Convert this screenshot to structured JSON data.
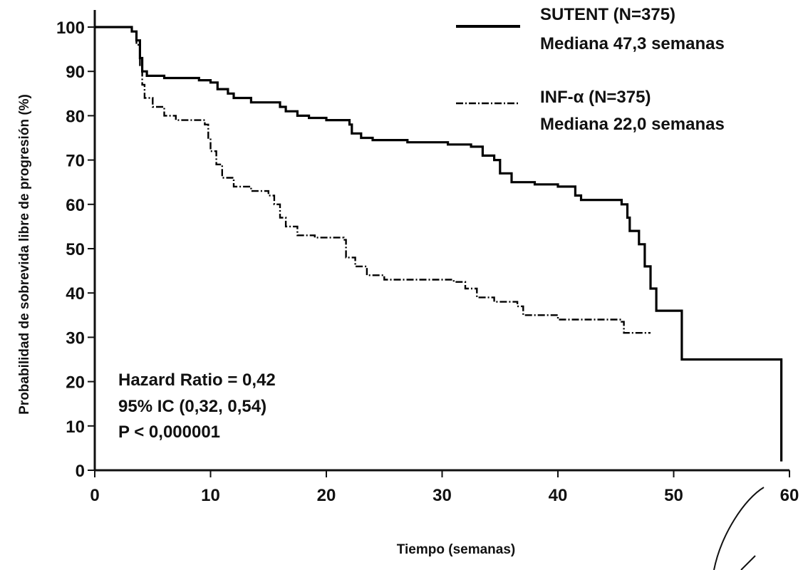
{
  "chart_data": {
    "type": "line",
    "title": "",
    "xlabel": "Tiempo (semanas)",
    "ylabel": "Probabilidad de sobrevida libre de progresión (%)",
    "xlim": [
      0,
      60
    ],
    "ylim": [
      0,
      100
    ],
    "x_ticks": [
      "0",
      "10",
      "20",
      "30",
      "40",
      "50",
      "60"
    ],
    "y_ticks": [
      "0",
      "10",
      "20",
      "30",
      "40",
      "50",
      "60",
      "70",
      "80",
      "90",
      "100"
    ],
    "grid": false,
    "legend_position": "top-right",
    "series": [
      {
        "name": "SUTENT (N=375)",
        "median_label": "Mediana 47,3 semanas",
        "color": "#000000",
        "style": "solid",
        "points": [
          [
            0,
            100
          ],
          [
            3.2,
            99
          ],
          [
            3.6,
            97
          ],
          [
            3.9,
            93
          ],
          [
            4.1,
            90
          ],
          [
            4.5,
            89
          ],
          [
            6,
            88.5
          ],
          [
            9,
            88
          ],
          [
            10,
            87.5
          ],
          [
            10.6,
            86
          ],
          [
            11.5,
            85
          ],
          [
            12,
            84
          ],
          [
            13.5,
            83
          ],
          [
            16,
            82
          ],
          [
            16.5,
            81
          ],
          [
            17.5,
            80
          ],
          [
            18.5,
            79.5
          ],
          [
            20,
            79
          ],
          [
            22,
            78
          ],
          [
            22.2,
            76
          ],
          [
            23,
            75
          ],
          [
            24,
            74.5
          ],
          [
            27,
            74
          ],
          [
            30.5,
            73.5
          ],
          [
            32.5,
            73
          ],
          [
            33.5,
            71
          ],
          [
            34.5,
            70
          ],
          [
            35,
            67
          ],
          [
            36,
            65
          ],
          [
            38,
            64.5
          ],
          [
            40,
            64
          ],
          [
            41.5,
            62
          ],
          [
            42,
            61
          ],
          [
            45.5,
            60
          ],
          [
            46,
            57
          ],
          [
            46.2,
            54
          ],
          [
            47,
            51
          ],
          [
            47.5,
            46
          ],
          [
            48,
            41
          ],
          [
            48.5,
            36
          ],
          [
            50,
            36
          ],
          [
            50.7,
            25
          ],
          [
            59.3,
            25
          ],
          [
            59.3,
            2
          ]
        ]
      },
      {
        "name": "INF-α (N=375)",
        "median_label": "Mediana 22,0 semanas",
        "color": "#000000",
        "style": "dashed",
        "points": [
          [
            0,
            100
          ],
          [
            3.2,
            99
          ],
          [
            3.6,
            96
          ],
          [
            3.9,
            91
          ],
          [
            4.1,
            87
          ],
          [
            4.3,
            84
          ],
          [
            5,
            82
          ],
          [
            6,
            80
          ],
          [
            7,
            79
          ],
          [
            9.5,
            78
          ],
          [
            9.8,
            75
          ],
          [
            10,
            72
          ],
          [
            10.5,
            69
          ],
          [
            11,
            66
          ],
          [
            12,
            64
          ],
          [
            13.5,
            63
          ],
          [
            15,
            62
          ],
          [
            15.5,
            60
          ],
          [
            16,
            57
          ],
          [
            16.5,
            55
          ],
          [
            17.5,
            53
          ],
          [
            19,
            52.5
          ],
          [
            21.5,
            52
          ],
          [
            21.7,
            48
          ],
          [
            22.5,
            46
          ],
          [
            23.5,
            44
          ],
          [
            25,
            43
          ],
          [
            31,
            42.5
          ],
          [
            32,
            41
          ],
          [
            33,
            39
          ],
          [
            34.5,
            38
          ],
          [
            36.5,
            37
          ],
          [
            37,
            35
          ],
          [
            40,
            34
          ],
          [
            45.5,
            33.5
          ],
          [
            45.7,
            31
          ],
          [
            48,
            31
          ]
        ]
      }
    ]
  },
  "annotations": {
    "hazard_ratio": "Hazard Ratio = 0,42",
    "ci": "95% IC (0,32, 0,54)",
    "p_value": "P < 0,000001"
  }
}
